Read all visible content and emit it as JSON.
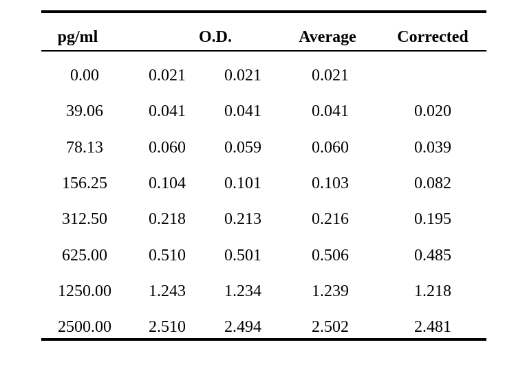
{
  "table": {
    "headers": [
      "pg/ml",
      "O.D.",
      "Average",
      "Corrected"
    ],
    "rows": [
      [
        "0.00",
        "0.021",
        "0.021",
        "0.021",
        ""
      ],
      [
        "39.06",
        "0.041",
        "0.041",
        "0.041",
        "0.020"
      ],
      [
        "78.13",
        "0.060",
        "0.059",
        "0.060",
        "0.039"
      ],
      [
        "156.25",
        "0.104",
        "0.101",
        "0.103",
        "0.082"
      ],
      [
        "312.50",
        "0.218",
        "0.213",
        "0.216",
        "0.195"
      ],
      [
        "625.00",
        "0.510",
        "0.501",
        "0.506",
        "0.485"
      ],
      [
        "1250.00",
        "1.243",
        "1.234",
        "1.239",
        "1.218"
      ],
      [
        "2500.00",
        "2.510",
        "2.494",
        "2.502",
        "2.481"
      ]
    ]
  }
}
